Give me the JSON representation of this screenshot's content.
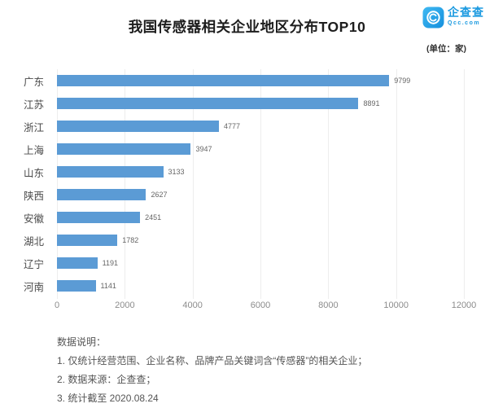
{
  "header": {
    "title": "我国传感器相关企业地区分布TOP10",
    "unit_label": "(单位：家)",
    "logo": {
      "brand": "企查查",
      "domain": "Qcc.com",
      "brand_color": "#1b9ae0"
    }
  },
  "chart_data": {
    "type": "bar",
    "orientation": "horizontal",
    "title": "我国传感器相关企业地区分布TOP10",
    "categories": [
      "广东",
      "江苏",
      "浙江",
      "上海",
      "山东",
      "陕西",
      "安徽",
      "湖北",
      "辽宁",
      "河南"
    ],
    "values": [
      9799,
      8891,
      4777,
      3947,
      3133,
      2627,
      2451,
      1782,
      1191,
      1141
    ],
    "xlabel": "",
    "ylabel": "",
    "xlim": [
      0,
      12000
    ],
    "xticks": [
      0,
      2000,
      4000,
      6000,
      8000,
      10000,
      12000
    ],
    "bar_color": "#5b9bd5",
    "grid": true,
    "value_labels": true,
    "legend": false
  },
  "footer": {
    "notes_title": "数据说明：",
    "notes": [
      "1. 仅统计经营范围、企业名称、品牌产品关键词含“传感器”的相关企业；",
      "2. 数据来源：企查查；",
      "3. 统计截至 2020.08.24"
    ]
  }
}
